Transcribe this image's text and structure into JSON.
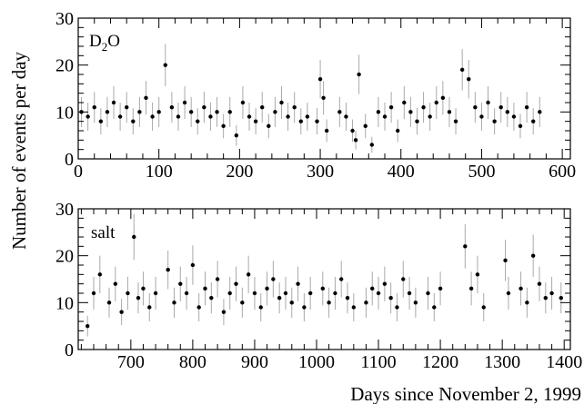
{
  "chart_data": {
    "type": "scatter",
    "ylabel": "Number of events per day",
    "xlabel": "Days since November 2, 1999",
    "panels": [
      {
        "label_main": "D",
        "label_sub": "2",
        "label_end": "O",
        "xlim": [
          0,
          610
        ],
        "ylim": [
          0,
          30
        ],
        "x_ticks": [
          0,
          100,
          200,
          300,
          400,
          500,
          600
        ],
        "x_tick_labels": [
          "0",
          "100",
          "200",
          "300",
          "400",
          "500",
          "600"
        ],
        "y_ticks": [
          0,
          10,
          20,
          30
        ],
        "y_tick_labels": [
          "0",
          "10",
          "20",
          "30"
        ],
        "x": [
          4,
          12,
          20,
          28,
          36,
          44,
          52,
          60,
          68,
          76,
          84,
          92,
          100,
          108,
          116,
          124,
          132,
          140,
          148,
          156,
          164,
          172,
          180,
          188,
          196,
          204,
          212,
          220,
          228,
          236,
          244,
          252,
          260,
          268,
          276,
          284,
          296,
          300,
          304,
          308,
          324,
          332,
          340,
          344,
          348,
          356,
          364,
          372,
          380,
          388,
          396,
          404,
          412,
          420,
          428,
          436,
          444,
          452,
          460,
          468,
          476,
          484,
          492,
          500,
          508,
          516,
          524,
          532,
          540,
          548,
          556,
          564,
          572
        ],
        "y": [
          10,
          9,
          11,
          8,
          10,
          12,
          9,
          11,
          8,
          10,
          13,
          9,
          10,
          20,
          11,
          9,
          12,
          10,
          8,
          11,
          9,
          10,
          7,
          10,
          5,
          12,
          9,
          8,
          11,
          7,
          10,
          12,
          9,
          11,
          8,
          9,
          8,
          17,
          13,
          6,
          10,
          9,
          6,
          4,
          18,
          7,
          3,
          10,
          9,
          11,
          6,
          12,
          10,
          8,
          11,
          9,
          12,
          13,
          10,
          8,
          19,
          17,
          11,
          9,
          12,
          8,
          11,
          10,
          9,
          7,
          11,
          8,
          10
        ],
        "err": [
          3.2,
          3.0,
          3.3,
          2.8,
          3.2,
          3.5,
          3.0,
          3.3,
          2.8,
          3.2,
          3.6,
          3.0,
          3.2,
          4.5,
          3.3,
          3.0,
          3.5,
          3.2,
          2.8,
          3.3,
          3.0,
          3.2,
          2.6,
          3.2,
          2.2,
          3.5,
          3.0,
          2.8,
          3.3,
          2.6,
          3.2,
          3.5,
          3.0,
          3.3,
          2.8,
          3.0,
          2.8,
          4.1,
          3.6,
          2.4,
          3.2,
          3.0,
          2.4,
          2.0,
          4.2,
          2.6,
          1.7,
          3.2,
          3.0,
          3.3,
          2.4,
          3.5,
          3.2,
          2.8,
          3.3,
          3.0,
          3.5,
          3.6,
          3.2,
          2.8,
          4.4,
          4.1,
          3.3,
          3.0,
          3.5,
          2.8,
          3.3,
          3.2,
          3.0,
          2.6,
          3.3,
          2.8,
          3.2
        ]
      },
      {
        "label_main": "salt",
        "label_sub": "",
        "label_end": "",
        "xlim": [
          615,
          1410
        ],
        "ylim": [
          0,
          30
        ],
        "x_ticks": [
          700,
          800,
          900,
          1000,
          1100,
          1200,
          1300,
          1400
        ],
        "x_tick_labels": [
          "700",
          "800",
          "900",
          "1000",
          "1100",
          "1200",
          "1300",
          "1400"
        ],
        "y_ticks": [
          0,
          10,
          20,
          30
        ],
        "y_tick_labels": [
          "0",
          "10",
          "20",
          "30"
        ],
        "x": [
          630,
          640,
          650,
          665,
          675,
          685,
          695,
          705,
          712,
          720,
          730,
          740,
          760,
          770,
          780,
          790,
          800,
          810,
          820,
          830,
          840,
          850,
          860,
          870,
          880,
          890,
          900,
          910,
          920,
          930,
          940,
          950,
          960,
          970,
          980,
          990,
          1010,
          1020,
          1030,
          1040,
          1050,
          1060,
          1080,
          1090,
          1100,
          1110,
          1120,
          1130,
          1140,
          1150,
          1160,
          1180,
          1190,
          1200,
          1240,
          1250,
          1260,
          1270,
          1305,
          1310,
          1330,
          1340,
          1350,
          1360,
          1370,
          1380,
          1395
        ],
        "y": [
          5,
          12,
          16,
          10,
          14,
          8,
          12,
          24,
          11,
          13,
          9,
          12,
          17,
          10,
          14,
          12,
          18,
          9,
          13,
          11,
          15,
          8,
          12,
          14,
          10,
          16,
          12,
          9,
          13,
          15,
          11,
          12,
          10,
          14,
          9,
          12,
          13,
          10,
          12,
          15,
          11,
          9,
          10,
          13,
          12,
          14,
          11,
          9,
          15,
          12,
          10,
          12,
          9,
          13,
          22,
          13,
          16,
          9,
          19,
          12,
          13,
          10,
          20,
          14,
          11,
          12,
          11
        ],
        "err": [
          2.2,
          3.5,
          4.0,
          3.2,
          3.7,
          2.8,
          3.5,
          4.9,
          3.3,
          3.6,
          3.0,
          3.5,
          4.1,
          3.2,
          3.7,
          3.5,
          4.2,
          3.0,
          3.6,
          3.3,
          3.9,
          2.8,
          3.5,
          3.7,
          3.2,
          4.0,
          3.5,
          3.0,
          3.6,
          3.9,
          3.3,
          3.5,
          3.2,
          3.7,
          3.0,
          3.5,
          3.6,
          3.2,
          3.5,
          3.9,
          3.3,
          3.0,
          3.2,
          3.6,
          3.5,
          3.7,
          3.3,
          3.0,
          3.9,
          3.5,
          3.2,
          3.5,
          3.0,
          3.6,
          4.7,
          3.6,
          4.0,
          3.0,
          4.4,
          3.5,
          3.6,
          3.2,
          4.5,
          3.7,
          3.3,
          3.5,
          3.3
        ]
      }
    ]
  }
}
